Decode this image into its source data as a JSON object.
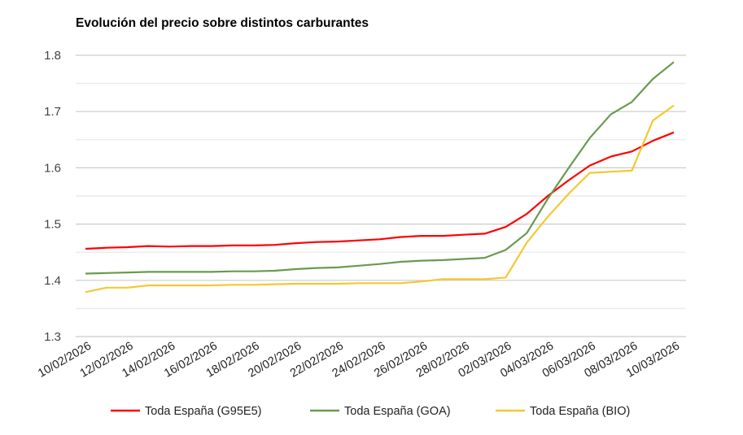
{
  "chart_data": {
    "type": "line",
    "title": "Evolución del precio sobre distintos carburantes",
    "xlabel": "",
    "ylabel": "",
    "ylim": [
      1.3,
      1.8
    ],
    "yticks": [
      "1.3",
      "1.4",
      "1.5",
      "1.6",
      "1.7",
      "1.8"
    ],
    "grid": true,
    "legend": "bottom",
    "x": [
      "10/02/2026",
      "11/02/2026",
      "12/02/2026",
      "13/02/2026",
      "14/02/2026",
      "15/02/2026",
      "16/02/2026",
      "17/02/2026",
      "18/02/2026",
      "19/02/2026",
      "20/02/2026",
      "21/02/2026",
      "22/02/2026",
      "23/02/2026",
      "24/02/2026",
      "25/02/2026",
      "26/02/2026",
      "27/02/2026",
      "28/02/2026",
      "01/03/2026",
      "02/03/2026",
      "03/03/2026",
      "04/03/2026",
      "05/03/2026",
      "06/03/2026",
      "07/03/2026",
      "08/03/2026",
      "09/03/2026",
      "10/03/2026"
    ],
    "xticks": [
      "10/02/2026",
      "12/02/2026",
      "14/02/2026",
      "16/02/2026",
      "18/02/2026",
      "20/02/2026",
      "22/02/2026",
      "24/02/2026",
      "26/02/2026",
      "28/02/2026",
      "02/03/2026",
      "04/03/2026",
      "06/03/2026",
      "08/03/2026",
      "10/03/2026"
    ],
    "series": [
      {
        "name": "Toda España (G95E5)",
        "color": "#ff0000",
        "values": [
          1.456,
          1.458,
          1.459,
          1.461,
          1.46,
          1.461,
          1.461,
          1.462,
          1.462,
          1.463,
          1.466,
          1.468,
          1.469,
          1.471,
          1.473,
          1.477,
          1.479,
          1.479,
          1.481,
          1.483,
          1.495,
          1.518,
          1.55,
          1.578,
          1.604,
          1.62,
          1.629,
          1.648,
          1.663
        ]
      },
      {
        "name": "Toda España (GOA)",
        "color": "#6a9a50",
        "values": [
          1.412,
          1.413,
          1.414,
          1.415,
          1.415,
          1.415,
          1.415,
          1.416,
          1.416,
          1.417,
          1.42,
          1.422,
          1.423,
          1.426,
          1.429,
          1.433,
          1.435,
          1.436,
          1.438,
          1.44,
          1.454,
          1.484,
          1.545,
          1.6,
          1.653,
          1.695,
          1.717,
          1.758,
          1.788
        ]
      },
      {
        "name": "Toda España (BIO)",
        "color": "#f3c832",
        "values": [
          1.379,
          1.387,
          1.387,
          1.391,
          1.391,
          1.391,
          1.391,
          1.392,
          1.392,
          1.393,
          1.394,
          1.394,
          1.394,
          1.395,
          1.395,
          1.395,
          1.398,
          1.402,
          1.402,
          1.402,
          1.405,
          1.467,
          1.513,
          1.554,
          1.591,
          1.593,
          1.595,
          1.684,
          1.711
        ]
      }
    ]
  }
}
